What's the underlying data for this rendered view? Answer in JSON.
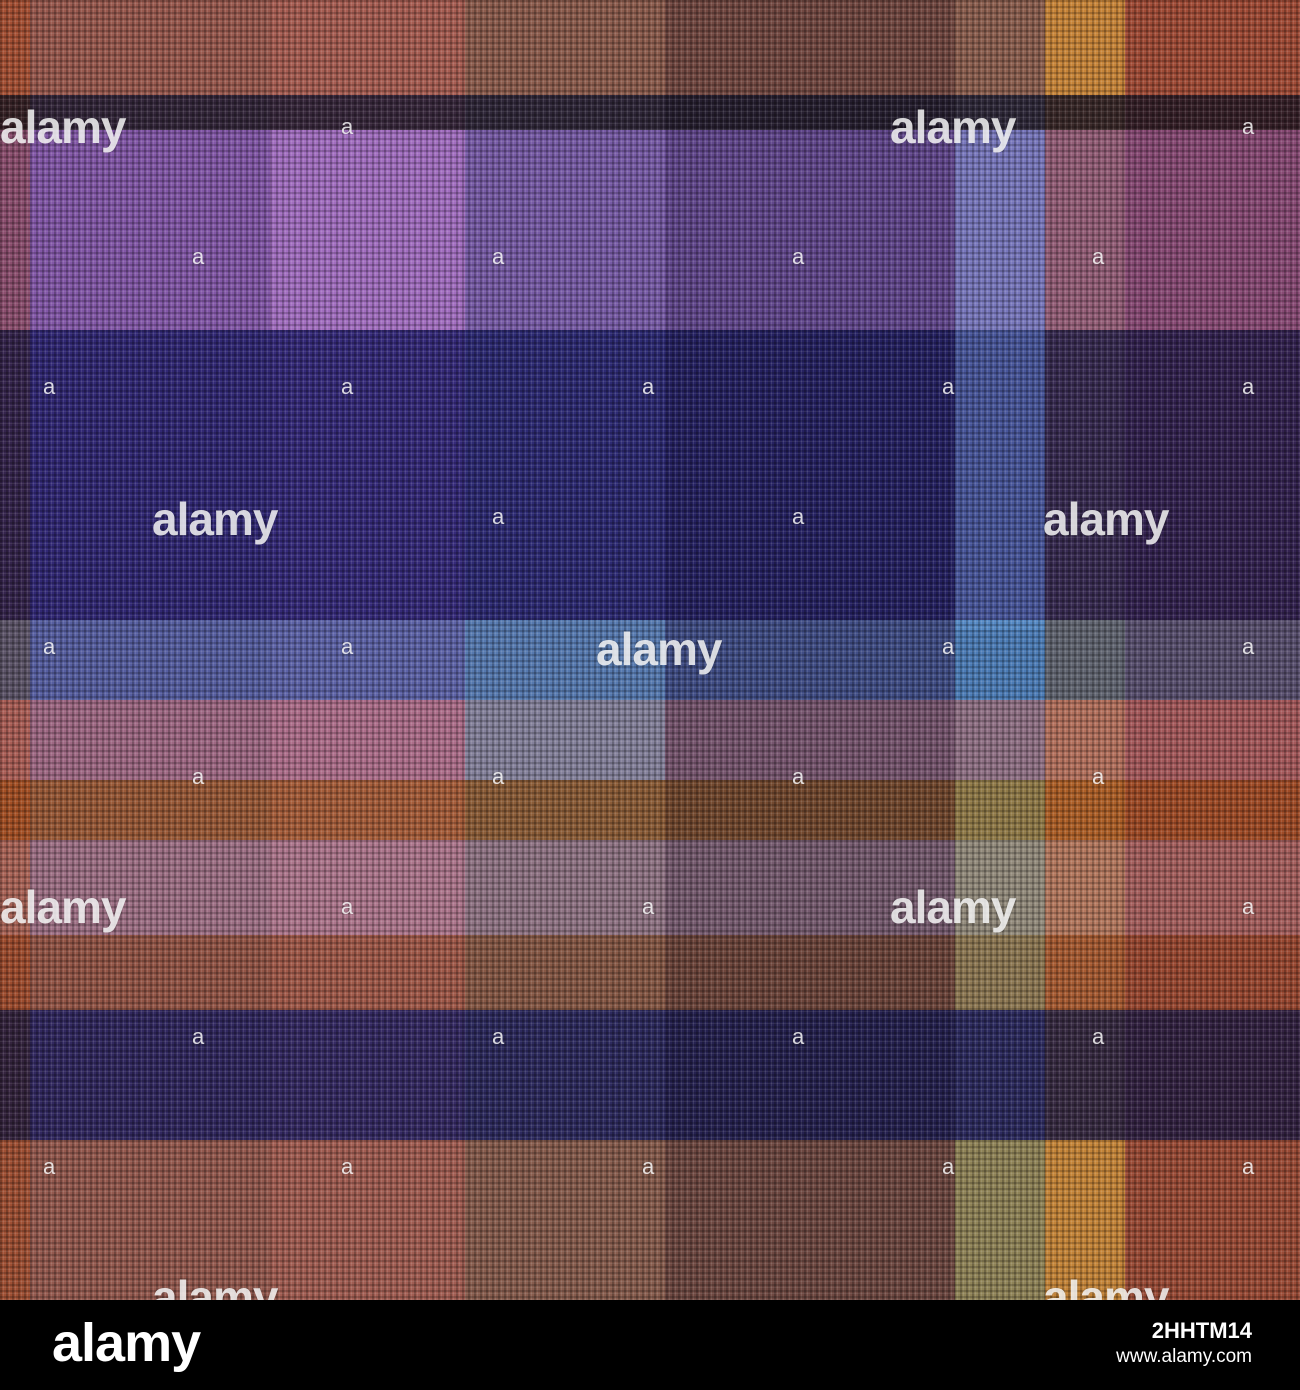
{
  "image": {
    "subject": "plaid-tartan-fabric-texture",
    "palette": {
      "blue": "#1c2f7a",
      "violet": "#6b3fae",
      "lilac": "#b07ad2",
      "sky": "#5a9ad6",
      "rust": "#b8652f",
      "salmon": "#c47f78",
      "olive": "#8d9a5a",
      "gold": "#e3b43a",
      "navy-line": "#10183a"
    }
  },
  "watermark": {
    "text": "alamy",
    "small_mark": "a"
  },
  "footer": {
    "logo": "alamy",
    "image_id": "2HHTM14",
    "url": "www.alamy.com"
  }
}
